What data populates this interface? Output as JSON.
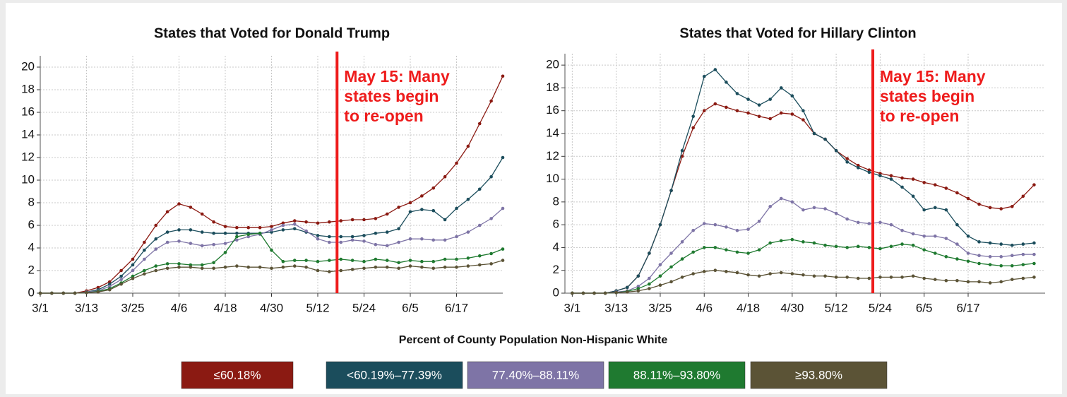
{
  "chart_data": [
    {
      "type": "line",
      "title": "States that Voted for Donald Trump",
      "x": [
        0,
        3,
        6,
        9,
        12,
        15,
        18,
        21,
        24,
        27,
        30,
        33,
        36,
        39,
        42,
        45,
        48,
        51,
        54,
        57,
        60,
        63,
        66,
        69,
        72,
        75,
        78,
        81,
        84,
        87,
        90,
        93,
        96,
        99,
        102,
        105,
        108,
        111,
        114,
        117,
        120
      ],
      "xlim": [
        0,
        120
      ],
      "ylim": [
        0,
        21
      ],
      "xticks": [
        {
          "value": 0,
          "label": "3/1"
        },
        {
          "value": 12,
          "label": "3/13"
        },
        {
          "value": 24,
          "label": "3/25"
        },
        {
          "value": 36,
          "label": "4/6"
        },
        {
          "value": 48,
          "label": "4/18"
        },
        {
          "value": 60,
          "label": "4/30"
        },
        {
          "value": 72,
          "label": "5/12"
        },
        {
          "value": 84,
          "label": "5/24"
        },
        {
          "value": 96,
          "label": "6/5"
        },
        {
          "value": 108,
          "label": "6/17"
        }
      ],
      "yticks": [
        0,
        2,
        4,
        6,
        8,
        10,
        12,
        14,
        16,
        18,
        20
      ],
      "grid": true,
      "annotation": {
        "x": 77,
        "lines": [
          "May 15: Many",
          "states begin",
          "to re-open"
        ],
        "color": "#ee1c1c"
      },
      "legend_title": "Percent of County Population Non-Hispanic White",
      "series": [
        {
          "name": "≤60.18%",
          "color": "#8b1a12",
          "values": [
            0,
            0,
            0,
            0,
            0.2,
            0.5,
            1,
            2,
            3,
            4.5,
            6,
            7.2,
            7.9,
            7.6,
            7,
            6.3,
            5.9,
            5.8,
            5.8,
            5.8,
            5.9,
            6.2,
            6.4,
            6.3,
            6.2,
            6.3,
            6.4,
            6.5,
            6.5,
            6.6,
            7,
            7.6,
            8,
            8.6,
            9.3,
            10.3,
            11.5,
            13,
            15,
            17,
            19.2
          ]
        },
        {
          "name": "<60.19%–77.39%",
          "color": "#1b4d5c",
          "values": [
            0,
            0,
            0,
            0,
            0.1,
            0.3,
            0.8,
            1.5,
            2.5,
            3.8,
            4.8,
            5.4,
            5.6,
            5.6,
            5.4,
            5.3,
            5.3,
            5.3,
            5.3,
            5.3,
            5.4,
            5.6,
            5.7,
            5.4,
            5.1,
            5,
            5,
            5,
            5.1,
            5.3,
            5.4,
            5.7,
            7.2,
            7.4,
            7.3,
            6.5,
            7.5,
            8.3,
            9.2,
            10.3,
            12
          ]
        },
        {
          "name": "77.40%–88.11%",
          "color": "#7e74a6",
          "values": [
            0,
            0,
            0,
            0,
            0.1,
            0.2,
            0.6,
            1.2,
            2,
            3,
            3.9,
            4.5,
            4.6,
            4.4,
            4.2,
            4.3,
            4.4,
            4.7,
            5,
            5.2,
            5.6,
            6,
            6.1,
            5.5,
            4.8,
            4.5,
            4.5,
            4.7,
            4.6,
            4.3,
            4.2,
            4.5,
            4.8,
            4.8,
            4.7,
            4.7,
            5,
            5.4,
            6,
            6.6,
            7.5
          ]
        },
        {
          "name": "88.11%–93.80%",
          "color": "#1f7a30",
          "values": [
            0,
            0,
            0,
            0,
            0.05,
            0.15,
            0.4,
            0.9,
            1.5,
            2,
            2.4,
            2.6,
            2.6,
            2.5,
            2.5,
            2.7,
            3.6,
            5,
            5.2,
            5.3,
            3.8,
            2.8,
            2.9,
            2.9,
            2.8,
            2.9,
            3,
            2.9,
            2.8,
            3,
            2.9,
            2.7,
            2.9,
            2.8,
            2.8,
            3,
            3,
            3.1,
            3.3,
            3.5,
            3.9
          ]
        },
        {
          "name": "≥93.80%",
          "color": "#5b5336",
          "values": [
            0,
            0,
            0,
            0,
            0.05,
            0.1,
            0.3,
            0.8,
            1.3,
            1.7,
            2,
            2.2,
            2.3,
            2.3,
            2.2,
            2.2,
            2.3,
            2.4,
            2.3,
            2.3,
            2.2,
            2.3,
            2.4,
            2.3,
            2,
            1.9,
            2,
            2.1,
            2.2,
            2.3,
            2.3,
            2.2,
            2.4,
            2.3,
            2.2,
            2.3,
            2.3,
            2.4,
            2.5,
            2.6,
            2.9
          ]
        }
      ]
    },
    {
      "type": "line",
      "title": "States that Voted for Hillary Clinton",
      "x": [
        0,
        3,
        6,
        9,
        12,
        15,
        18,
        21,
        24,
        27,
        30,
        33,
        36,
        39,
        42,
        45,
        48,
        51,
        54,
        57,
        60,
        63,
        66,
        69,
        72,
        75,
        78,
        81,
        84,
        87,
        90,
        93,
        96,
        99,
        102,
        105,
        108,
        111,
        114,
        117,
        120,
        123,
        126
      ],
      "xlim": [
        -2,
        129
      ],
      "ylim": [
        0,
        21
      ],
      "xticks": [
        {
          "value": 0,
          "label": "3/1"
        },
        {
          "value": 12,
          "label": "3/13"
        },
        {
          "value": 24,
          "label": "3/25"
        },
        {
          "value": 36,
          "label": "4/6"
        },
        {
          "value": 48,
          "label": "4/18"
        },
        {
          "value": 60,
          "label": "4/30"
        },
        {
          "value": 72,
          "label": "5/12"
        },
        {
          "value": 84,
          "label": "5/24"
        },
        {
          "value": 96,
          "label": "6/5"
        },
        {
          "value": 108,
          "label": "6/17"
        }
      ],
      "yticks": [
        0,
        2,
        4,
        6,
        8,
        10,
        12,
        14,
        16,
        18,
        20
      ],
      "grid": true,
      "annotation": {
        "x": 82,
        "lines": [
          "May 15: Many",
          "states begin",
          "to re-open"
        ],
        "color": "#ee1c1c"
      },
      "series": [
        {
          "color": "#8b1a12",
          "values": [
            0,
            0,
            0,
            0,
            0.2,
            0.5,
            1.5,
            3.5,
            6,
            9,
            12,
            14.5,
            16,
            16.6,
            16.3,
            16,
            15.8,
            15.5,
            15.3,
            15.8,
            15.7,
            15.2,
            14,
            13.5,
            12.5,
            11.8,
            11.2,
            10.8,
            10.5,
            10.3,
            10.1,
            10,
            9.7,
            9.5,
            9.2,
            8.8,
            8.3,
            7.8,
            7.5,
            7.4,
            7.6,
            8.5,
            9.5
          ]
        },
        {
          "color": "#1b4d5c",
          "values": [
            0,
            0,
            0,
            0,
            0.2,
            0.5,
            1.5,
            3.5,
            6,
            9,
            12.5,
            15.5,
            19,
            19.6,
            18.5,
            17.5,
            17,
            16.5,
            17,
            18,
            17.3,
            16,
            14,
            13.5,
            12.5,
            11.5,
            11,
            10.6,
            10.3,
            10,
            9.3,
            8.5,
            7.3,
            7.5,
            7.3,
            6,
            5,
            4.5,
            4.4,
            4.3,
            4.2,
            4.3,
            4.4
          ]
        },
        {
          "color": "#7e74a6",
          "values": [
            0,
            0,
            0,
            0,
            0.1,
            0.2,
            0.6,
            1.3,
            2.5,
            3.5,
            4.5,
            5.5,
            6.1,
            6,
            5.8,
            5.5,
            5.6,
            6.3,
            7.6,
            8.3,
            8,
            7.3,
            7.5,
            7.4,
            7,
            6.5,
            6.2,
            6.1,
            6.2,
            6,
            5.5,
            5.2,
            5,
            5,
            4.8,
            4.3,
            3.5,
            3.3,
            3.2,
            3.2,
            3.3,
            3.4,
            3.4
          ]
        },
        {
          "color": "#1f7a30",
          "values": [
            0,
            0,
            0,
            0,
            0.05,
            0.15,
            0.4,
            0.8,
            1.5,
            2.3,
            3,
            3.6,
            4,
            4,
            3.8,
            3.6,
            3.5,
            3.8,
            4.4,
            4.6,
            4.7,
            4.5,
            4.4,
            4.2,
            4.1,
            4,
            4.1,
            4,
            3.9,
            4.1,
            4.3,
            4.2,
            3.8,
            3.5,
            3.2,
            3,
            2.8,
            2.6,
            2.5,
            2.4,
            2.4,
            2.5,
            2.6
          ]
        },
        {
          "color": "#5b5336",
          "values": [
            0,
            0,
            0,
            0,
            0.05,
            0.1,
            0.2,
            0.4,
            0.7,
            1,
            1.4,
            1.7,
            1.9,
            2,
            1.9,
            1.8,
            1.6,
            1.5,
            1.7,
            1.8,
            1.7,
            1.6,
            1.5,
            1.5,
            1.4,
            1.4,
            1.3,
            1.3,
            1.4,
            1.4,
            1.4,
            1.5,
            1.3,
            1.2,
            1.1,
            1.1,
            1,
            1,
            0.9,
            1,
            1.2,
            1.3,
            1.4
          ]
        }
      ]
    }
  ]
}
